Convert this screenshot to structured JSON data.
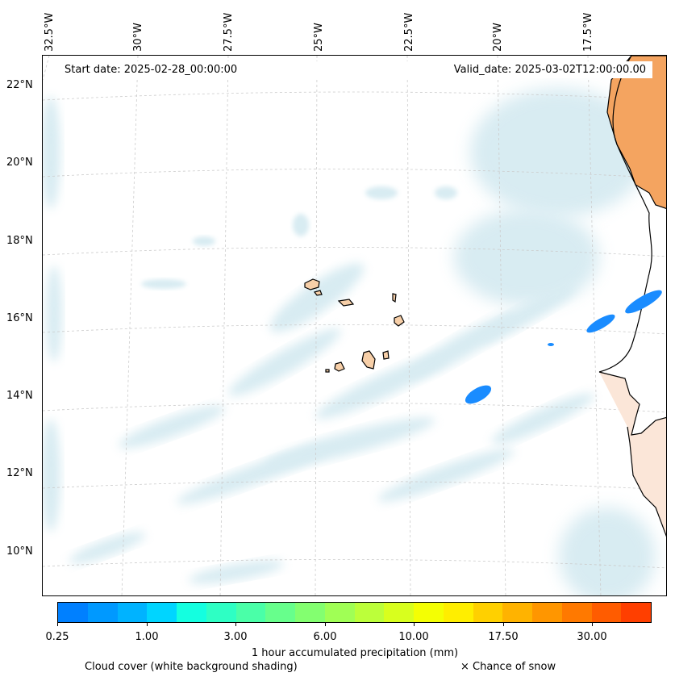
{
  "map": {
    "lon_labels": [
      "32.5°W",
      "30°W",
      "27.5°W",
      "25°W",
      "22.5°W",
      "20°W",
      "17.5°W"
    ],
    "lat_labels": [
      "22°N",
      "20°N",
      "18°N",
      "16°N",
      "14°N",
      "12°N",
      "10°N"
    ],
    "start_date": "Start date: 2025-02-28_00:00:00",
    "valid_date": "Valid_date: 2025-03-02T12:00:00.00"
  },
  "colorbar": {
    "ticks": [
      "0.25",
      "1.00",
      "3.00",
      "6.00",
      "10.00",
      "17.50",
      "30.00"
    ],
    "label": "1 hour accumulated precipitation (mm)",
    "colors": [
      "#0080ff",
      "#0099ff",
      "#00b3ff",
      "#00d5ff",
      "#14ffe0",
      "#2effc4",
      "#4affa8",
      "#67ff8c",
      "#83ff70",
      "#a0ff55",
      "#bcff3a",
      "#d8ff1e",
      "#f4ff03",
      "#ffee00",
      "#ffd000",
      "#ffb300",
      "#ff9600",
      "#ff7900",
      "#ff5c00",
      "#ff3f00"
    ]
  },
  "legend": {
    "cloud": "Cloud cover (white background shading)",
    "snow": "× Chance of snow"
  },
  "colors": {
    "cloud": "#a8d4e2",
    "land_africa": "#f4a460",
    "land_islands": "#f7cfa8",
    "precip": "#1a8cff"
  }
}
